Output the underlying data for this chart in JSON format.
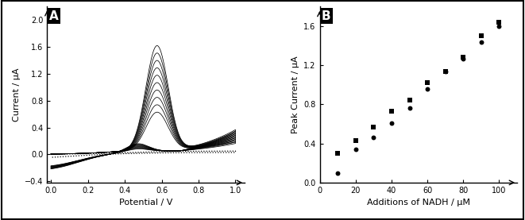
{
  "panel_A_label": "A",
  "panel_B_label": "B",
  "cv_xlim": [
    -0.02,
    1.05
  ],
  "cv_ylim": [
    -0.42,
    2.2
  ],
  "cv_xticks": [
    0.0,
    0.2,
    0.4,
    0.6,
    0.8,
    1.0
  ],
  "cv_yticks": [
    -0.4,
    0.0,
    0.4,
    0.8,
    1.2,
    1.6,
    2.0
  ],
  "cv_xlabel": "Potential / V",
  "cv_ylabel": "Current / µA",
  "n_cv_curves": 10,
  "cal_xlabel": "Additions of NADH / µM",
  "cal_ylabel": "Peak Current / µA",
  "cal_xlim": [
    0,
    110
  ],
  "cal_ylim": [
    0.0,
    1.8
  ],
  "cal_xticks": [
    0,
    20,
    40,
    60,
    80,
    100
  ],
  "cal_yticks": [
    0.0,
    0.4,
    0.8,
    1.2,
    1.6
  ],
  "ip_spe_x": [
    10,
    20,
    30,
    40,
    50,
    60,
    70,
    80,
    90,
    100
  ],
  "ip_spe_y": [
    0.3,
    0.43,
    0.57,
    0.73,
    0.84,
    1.02,
    1.14,
    1.28,
    1.5,
    1.64
  ],
  "std_spe_x": [
    10,
    20,
    30,
    40,
    50,
    60,
    70,
    80,
    90,
    100
  ],
  "std_spe_y": [
    0.1,
    0.34,
    0.46,
    0.61,
    0.76,
    0.96,
    1.14,
    1.27,
    1.44,
    1.6
  ],
  "bg_color": "#ffffff",
  "line_color": "#000000"
}
